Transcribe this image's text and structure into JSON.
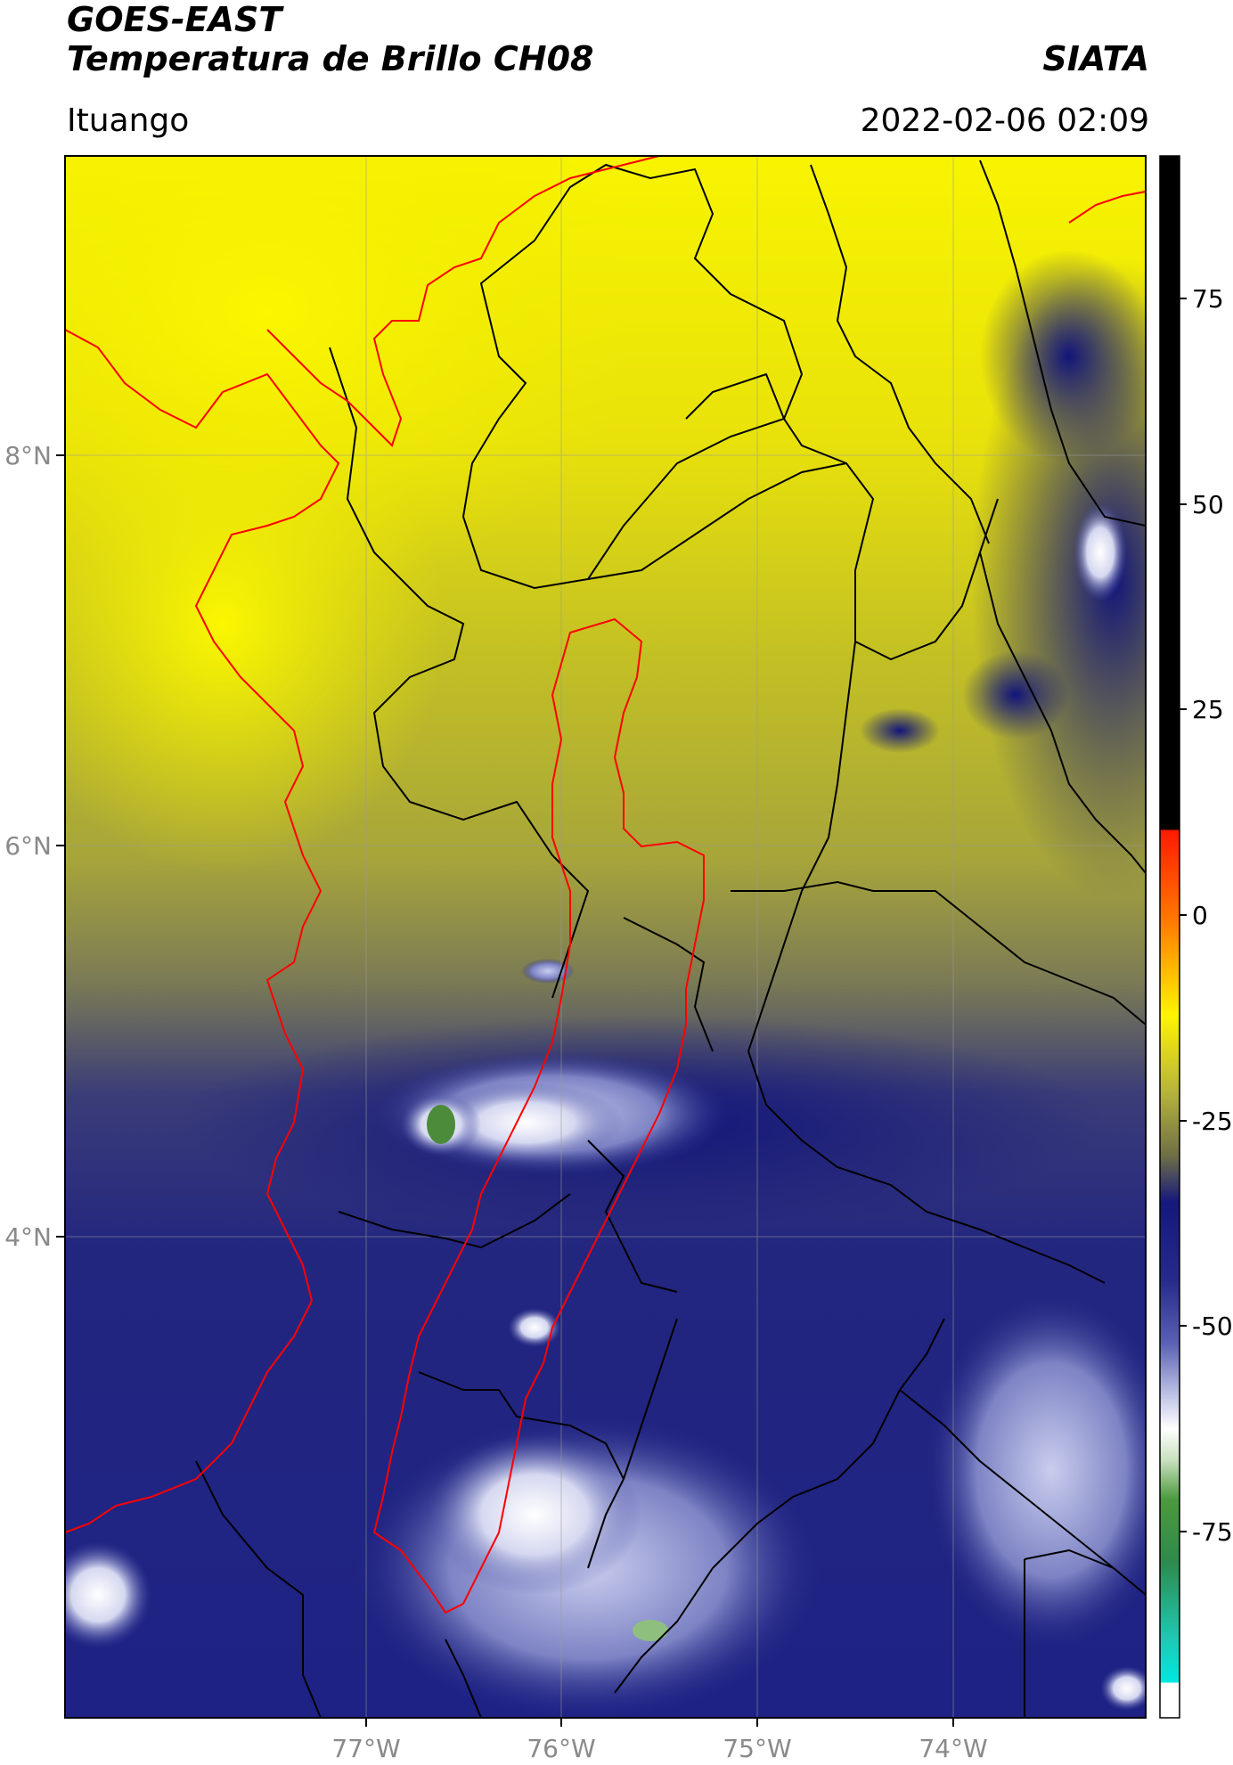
{
  "header": {
    "title_line1": "GOES-EAST",
    "title_line2": "Temperatura de Brillo CH08",
    "agency": "SIATA",
    "location": "Ituango",
    "timestamp": "2022-02-06 02:09"
  },
  "map": {
    "lon_range": [
      -78.55,
      -73.0
    ],
    "lat_range": [
      2.0,
      9.55
    ],
    "lon_ticks": [
      {
        "value": -77,
        "label": "77°W"
      },
      {
        "value": -76,
        "label": "76°W"
      },
      {
        "value": -75,
        "label": "75°W"
      },
      {
        "value": -74,
        "label": "74°W"
      }
    ],
    "lat_ticks": [
      {
        "value": 8,
        "label": "8°N"
      },
      {
        "value": 6,
        "label": "6°N"
      },
      {
        "value": 4,
        "label": "4°N"
      }
    ],
    "gridlines": true,
    "colors": {
      "warm": "#f7f200",
      "olive": "#9d9d3a",
      "cold": "#1c1f86",
      "very_cold": "#b7bde8",
      "coastline": "#ff0000",
      "borders": "#000000",
      "region_outline": "#ff0000"
    }
  },
  "colorbar": {
    "range": [
      -100,
      90
    ],
    "ticks": [
      {
        "value": 75,
        "label": "75"
      },
      {
        "value": 50,
        "label": "50"
      },
      {
        "value": 25,
        "label": "25"
      },
      {
        "value": 0,
        "label": "0"
      },
      {
        "value": -25,
        "label": "-25"
      },
      {
        "value": -50,
        "label": "-50"
      },
      {
        "value": -75,
        "label": "-75"
      }
    ]
  }
}
